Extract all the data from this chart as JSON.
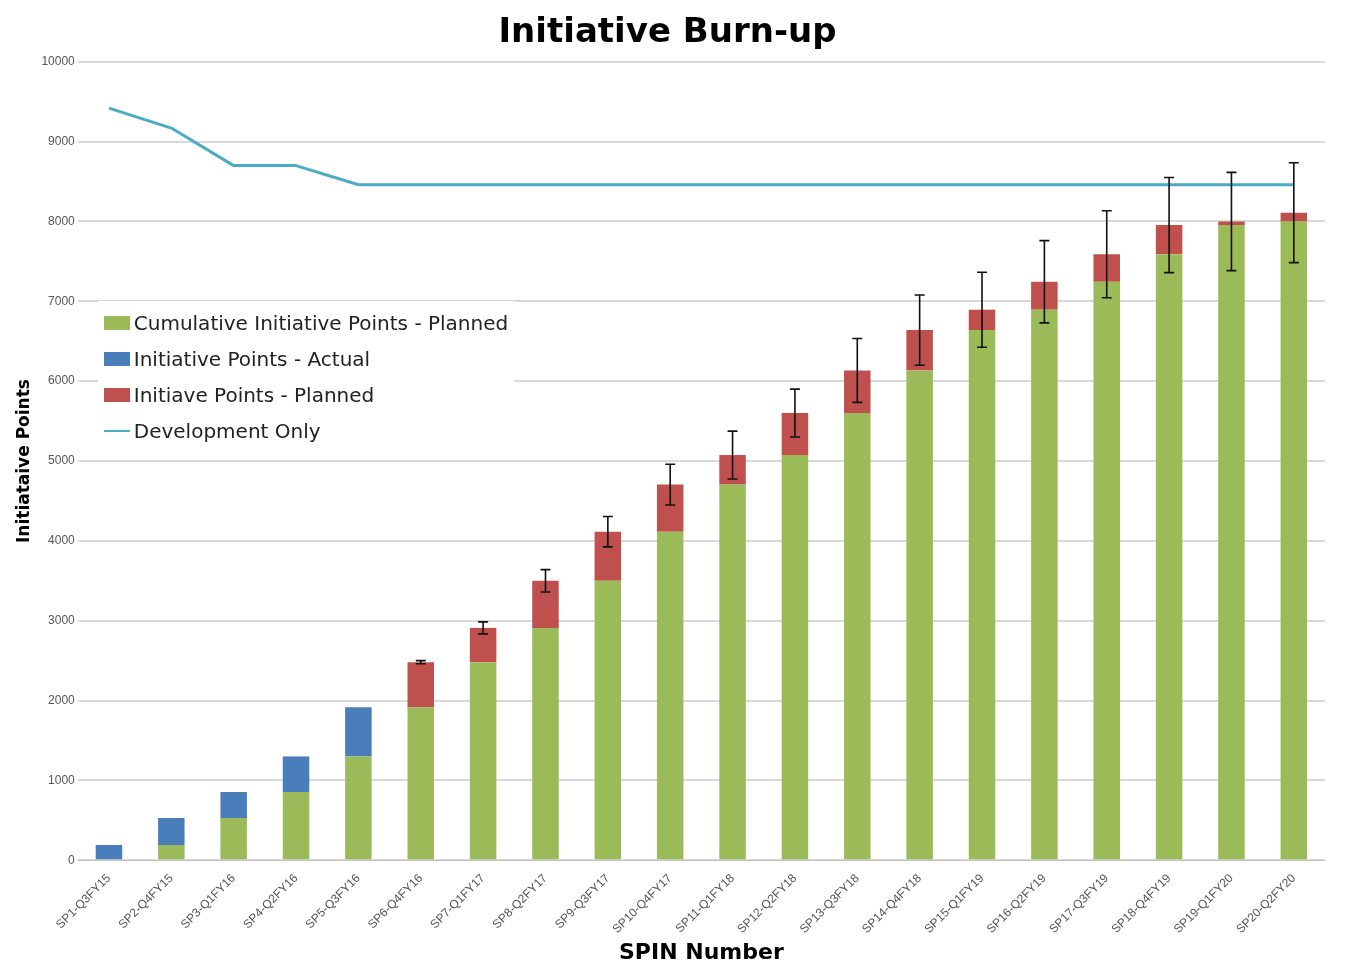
{
  "chart_data": {
    "type": "bar",
    "title": "Initiative Burn-up",
    "xlabel": "SPIN Number",
    "ylabel": "Initiataive Points",
    "categories": [
      "SP1-Q3FY15",
      "SP2-Q4FY15",
      "SP3-Q1FY16",
      "SP4-Q2FY16",
      "SP5-Q3FY16",
      "SP6-Q4FY16",
      "SP7-Q1FY17",
      "SP8-Q2FY17",
      "SP9-Q3FY17",
      "SP10-Q4FY17",
      "SP11-Q1FY18",
      "SP12-Q2FY18",
      "SP13-Q3FY18",
      "SP14-Q4FY18",
      "SP15-Q1FY19",
      "SP16-Q2FY19",
      "SP17-Q3FY19",
      "SP18-Q4FY19",
      "SP19-Q1FY20",
      "SP20-Q2FY20"
    ],
    "stacked": true,
    "series": [
      {
        "name": "Cumulative Initiative Points - Planned",
        "color": "#9bbb59",
        "values": [
          0,
          190,
          530,
          855,
          1300,
          1915,
          2480,
          2910,
          3500,
          4115,
          4705,
          5075,
          5600,
          6135,
          6640,
          6895,
          7245,
          7590,
          7955,
          8000
        ]
      },
      {
        "name": "Initiative Points - Actual",
        "color": "#4a7ebb",
        "values": [
          190,
          340,
          325,
          445,
          615,
          null,
          null,
          null,
          null,
          null,
          null,
          null,
          null,
          null,
          null,
          null,
          null,
          null,
          null,
          null
        ]
      },
      {
        "name": "Initiave Points - Planned",
        "color": "#c0504d",
        "values": [
          null,
          null,
          null,
          null,
          null,
          565,
          430,
          590,
          615,
          590,
          370,
          525,
          535,
          505,
          255,
          350,
          345,
          365,
          45,
          110
        ],
        "errors": [
          null,
          null,
          null,
          null,
          null,
          20,
          75,
          140,
          190,
          255,
          300,
          300,
          400,
          440,
          470,
          515,
          545,
          595,
          615,
          625
        ]
      },
      {
        "name": "Development Only",
        "type": "line",
        "color": "#4bacc6",
        "values": [
          9420,
          9170,
          8700,
          8700,
          8460,
          8460,
          8460,
          8460,
          8460,
          8460,
          8460,
          8460,
          8460,
          8460,
          8460,
          8460,
          8460,
          8460,
          8460,
          8460
        ]
      }
    ],
    "ylim": [
      0,
      10000
    ],
    "yticks": [
      0,
      1000,
      2000,
      3000,
      4000,
      5000,
      6000,
      7000,
      8000,
      9000,
      10000
    ],
    "grid": "y",
    "legend": "left",
    "marker": "none"
  }
}
